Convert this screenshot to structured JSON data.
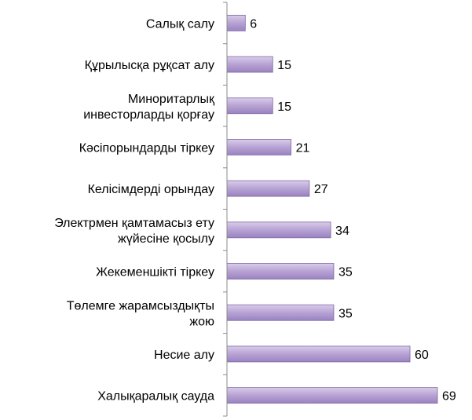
{
  "chart_data": {
    "type": "bar",
    "orientation": "horizontal",
    "categories": [
      "Салық салу",
      "Құрылысқа рұқсат алу",
      "Миноритарлық инвесторларды қорғау",
      "Кәсіпорындарды тіркеу",
      "Келісімдерді орындау",
      "Электрмен қамтамасыз ету жүйесіне қосылу",
      "Жекеменшікті тіркеу",
      "Төлемге жарамсыздықты жою",
      "Несие алу",
      "Халықаралық сауда"
    ],
    "category_lines": [
      [
        "Салық салу"
      ],
      [
        "Құрылысқа рұқсат алу"
      ],
      [
        "Миноритарлық",
        "инвесторларды қорғау"
      ],
      [
        "Кәсіпорындарды тіркеу"
      ],
      [
        "Келісімдерді орындау"
      ],
      [
        "Электрмен қамтамасыз ету",
        "жүйесіне қосылу"
      ],
      [
        "Жекеменшікті тіркеу"
      ],
      [
        "Төлемге жарамсыздықты",
        "жою"
      ],
      [
        "Несие алу"
      ],
      [
        "Халықаралық сауда"
      ]
    ],
    "values": [
      6,
      15,
      15,
      21,
      27,
      34,
      35,
      35,
      60,
      69
    ],
    "value_labels": [
      "6",
      "15",
      "15",
      "21",
      "27",
      "34",
      "35",
      "35",
      "60",
      "69"
    ],
    "axis": "reversed",
    "xlim": [
      0,
      190
    ],
    "grid": false,
    "legend": "none",
    "title": "",
    "xlabel": "",
    "ylabel": ""
  },
  "colors": {
    "bar_top": "#d9cdea",
    "bar_mid": "#b7a2d4",
    "bar_bottom": "#9a83c0",
    "bar_edge": "#7d67a4",
    "axis": "#8c8c8c"
  }
}
